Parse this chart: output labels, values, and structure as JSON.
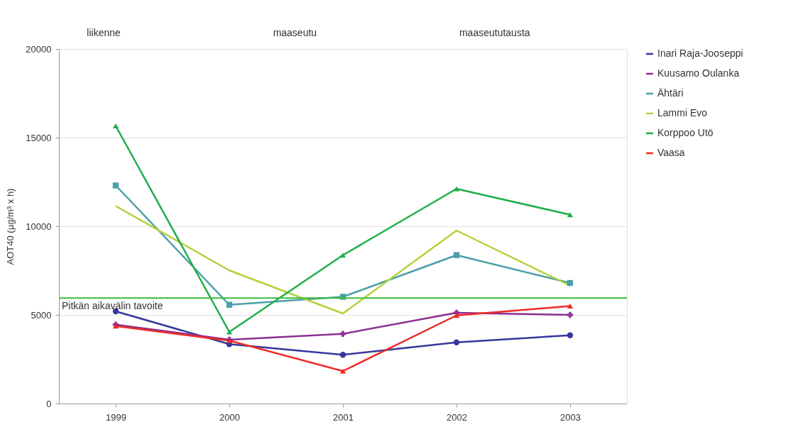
{
  "chart_data": {
    "type": "line",
    "categories": [
      "1999",
      "2000",
      "2001",
      "2002",
      "2003"
    ],
    "ylabel": "AOT40 (µg/m³ x h)",
    "ylim": [
      0,
      20000
    ],
    "yticks": [
      0,
      5000,
      10000,
      15000,
      20000
    ],
    "grid": "y",
    "legend": "right",
    "series": [
      {
        "name": "Inari Raja-Jooseppi",
        "color": "#35379c",
        "marker": "circle",
        "values": [
          5200,
          3350,
          2750,
          3450,
          3850
        ]
      },
      {
        "name": "Kuusamo Oulanka",
        "color": "#8e2f91",
        "marker": "cross",
        "values": [
          4450,
          3600,
          3930,
          5120,
          5000
        ]
      },
      {
        "name": "Ähtäri",
        "color": "#4a9fa9",
        "marker": "square",
        "values": [
          12300,
          5570,
          6020,
          8370,
          6800
        ]
      },
      {
        "name": "Lammi Evo",
        "color": "#b3d13a",
        "marker": "none",
        "values": [
          11140,
          7510,
          5080,
          9760,
          6650
        ]
      },
      {
        "name": "Korppoo Utö",
        "color": "#1fae4a",
        "marker": "triangle",
        "values": [
          15660,
          4040,
          8370,
          12110,
          10650
        ]
      },
      {
        "name": "Vaasa",
        "color": "#ee2b24",
        "marker": "triangle",
        "values": [
          4370,
          3550,
          1830,
          4970,
          5500
        ]
      }
    ],
    "ref_lines": [
      {
        "axis": "y",
        "value": 5950,
        "label": "Pitkän aikavälin tavoite",
        "color": "#3cba3c"
      }
    ],
    "annotations": [
      "liikenne",
      "maaseutu",
      "maaseututausta"
    ]
  }
}
